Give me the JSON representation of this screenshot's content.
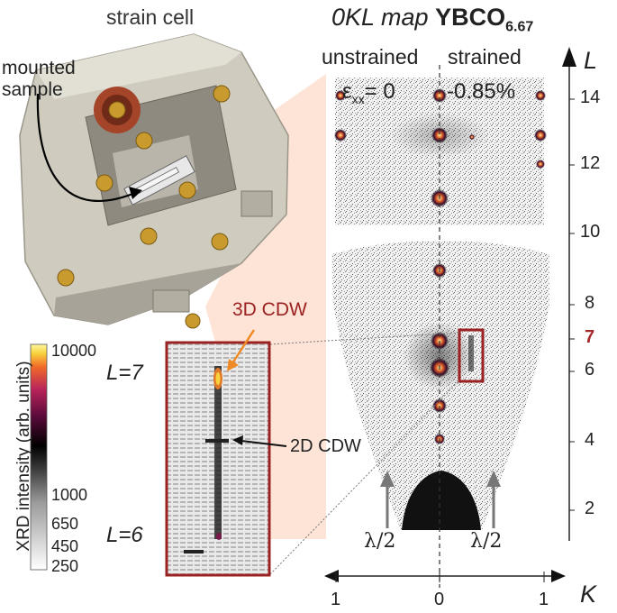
{
  "labels": {
    "strain_cell": "strain cell",
    "mounted_sample_line1": "mounted",
    "mounted_sample_line2": "sample",
    "map_title_prefix": "0KL map",
    "map_title_compound": "YBCO",
    "map_title_subscript": "6.67",
    "unstrained": "unstrained",
    "strained": "strained",
    "eps_symbol": "ε",
    "eps_subscript": "xx",
    "eps_value_unstrained": "= 0",
    "eps_value_strained": "-0.85%",
    "cdw_3d": "3D CDW",
    "cdw_2d": "2D CDW",
    "l_eq_7": "L=7",
    "l_eq_6": "L=6",
    "lambda_half_left": "λ/2",
    "lambda_half_right": "λ/2"
  },
  "axes": {
    "l_axis": {
      "label": "L",
      "ticks": [
        "14",
        "12",
        "10",
        "8",
        "7",
        "6",
        "4",
        "2"
      ],
      "highlight_tick": "7",
      "highlight_color": "#a52a2a"
    },
    "k_axis": {
      "label": "K",
      "ticks": [
        "1",
        "0",
        "1"
      ]
    }
  },
  "colorbar": {
    "title": "XRD intensity (arb. units)",
    "ticks": [
      "10000",
      "1000",
      "650",
      "450",
      "250"
    ],
    "colors": [
      "#ffffff",
      "#bbbbbb",
      "#555555",
      "#000000",
      "#5a0a3a",
      "#b8245a",
      "#f06a28",
      "#f8d23c",
      "#fff7a0"
    ]
  },
  "colors": {
    "frame": "#9b2222",
    "zoom_cone": "#fde4d6",
    "arrow_3d": "#f08a24",
    "cell_body": "#cfcbbe",
    "cell_dark": "#8e8a80",
    "screw": "#c99a2e",
    "knob": "#a4452a"
  }
}
